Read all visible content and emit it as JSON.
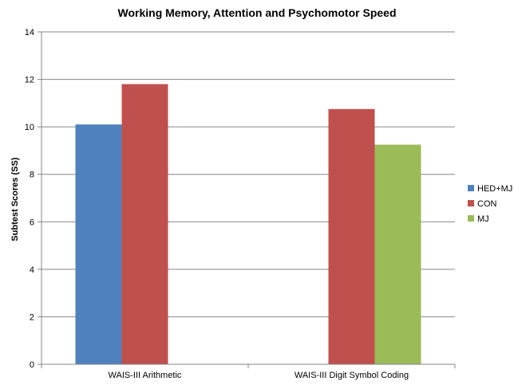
{
  "chart_data": {
    "type": "bar",
    "title": "Working Memory, Attention and Psychomotor Speed",
    "xlabel": "",
    "ylabel": "Subtest Scores (SS)",
    "categories": [
      "WAIS-III Arithmetic",
      "WAIS-III Digit Symbol Coding"
    ],
    "series": [
      {
        "name": "HED+MJ",
        "values": [
          10.1,
          null
        ],
        "color": "#4F81BD"
      },
      {
        "name": "CON",
        "values": [
          11.8,
          10.75
        ],
        "color": "#C0504D"
      },
      {
        "name": "MJ",
        "values": [
          null,
          9.25
        ],
        "color": "#9BBB59"
      }
    ],
    "ylim": [
      0,
      14
    ],
    "yticks": [
      "0",
      "2",
      "4",
      "6",
      "8",
      "10",
      "12",
      "14"
    ],
    "grid": true,
    "legend": "right"
  }
}
